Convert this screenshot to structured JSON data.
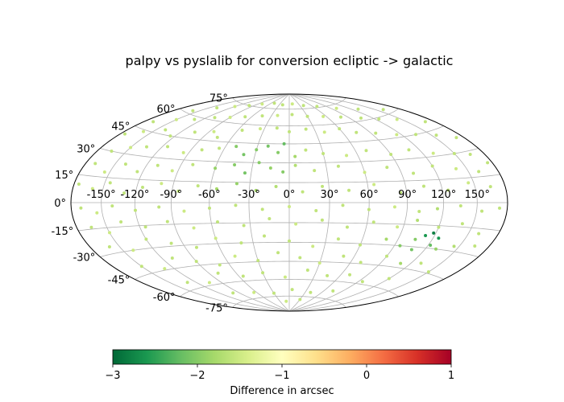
{
  "chart_data": {
    "type": "scatter",
    "projection": "hammer",
    "title": "palpy vs pyslalib for conversion ecliptic -> galactic",
    "grid": true,
    "x_tick_labels": [
      "-150°",
      "-120°",
      "-90°",
      "-60°",
      "-30°",
      "0°",
      "30°",
      "60°",
      "90°",
      "120°",
      "150°"
    ],
    "x_tick_values": [
      -150,
      -120,
      -90,
      -60,
      -30,
      0,
      30,
      60,
      90,
      120,
      150
    ],
    "y_tick_labels": [
      "-75°",
      "-60°",
      "-45°",
      "-30°",
      "-15°",
      "0°",
      "15°",
      "30°",
      "45°",
      "60°",
      "75°"
    ],
    "y_tick_values": [
      -75,
      -60,
      -45,
      -30,
      -15,
      0,
      15,
      30,
      45,
      60,
      75
    ],
    "colorbar": {
      "label": "Difference in arcsec",
      "colormap": "RdYlGn_r",
      "range": [
        -3,
        1
      ],
      "tick_labels": [
        "−3",
        "−2",
        "−1",
        "0",
        "1"
      ],
      "tick_values": [
        -3,
        -2,
        -1,
        0,
        1
      ],
      "colors": [
        "#006837",
        "#1a9850",
        "#66bd63",
        "#a6d96a",
        "#d9ef8b",
        "#ffffbf",
        "#fee08b",
        "#fdae61",
        "#f46d43",
        "#d73027",
        "#a50026"
      ]
    },
    "points": [
      [
        -158,
        62,
        -1.6
      ],
      [
        -140,
        68,
        -1.6
      ],
      [
        -120,
        72,
        -1.5
      ],
      [
        -100,
        75,
        -1.6
      ],
      [
        -80,
        78,
        -1.5
      ],
      [
        -50,
        80,
        -1.6
      ],
      [
        -20,
        79,
        -1.6
      ],
      [
        10,
        80,
        -1.5
      ],
      [
        40,
        78,
        -1.6
      ],
      [
        70,
        76,
        -1.6
      ],
      [
        100,
        72,
        -1.5
      ],
      [
        130,
        68,
        -1.6
      ],
      [
        160,
        63,
        -1.6
      ],
      [
        -170,
        50,
        -1.6
      ],
      [
        -150,
        55,
        -1.5
      ],
      [
        -130,
        58,
        -1.6
      ],
      [
        -110,
        62,
        -1.6
      ],
      [
        -90,
        64,
        -1.5
      ],
      [
        -70,
        66,
        -1.6
      ],
      [
        -45,
        68,
        -1.6
      ],
      [
        -20,
        69,
        -1.5
      ],
      [
        5,
        70,
        -1.6
      ],
      [
        30,
        68,
        -1.6
      ],
      [
        55,
        67,
        -1.5
      ],
      [
        80,
        65,
        -1.6
      ],
      [
        105,
        62,
        -1.6
      ],
      [
        125,
        59,
        -1.6
      ],
      [
        145,
        56,
        -1.5
      ],
      [
        170,
        50,
        -1.6
      ],
      [
        -175,
        40,
        -1.6
      ],
      [
        -160,
        44,
        -1.5
      ],
      [
        -140,
        48,
        -1.6
      ],
      [
        -125,
        45,
        -1.6
      ],
      [
        -105,
        50,
        -1.6
      ],
      [
        -85,
        52,
        -1.5
      ],
      [
        -75,
        48,
        -1.6
      ],
      [
        -55,
        55,
        -1.6
      ],
      [
        -35,
        57,
        -1.5
      ],
      [
        -15,
        58,
        -1.6
      ],
      [
        0,
        55,
        -1.6
      ],
      [
        20,
        57,
        -1.6
      ],
      [
        40,
        54,
        -1.5
      ],
      [
        60,
        56,
        -1.6
      ],
      [
        75,
        52,
        -1.6
      ],
      [
        95,
        50,
        -1.6
      ],
      [
        115,
        47,
        -1.5
      ],
      [
        135,
        45,
        -1.6
      ],
      [
        155,
        42,
        -1.6
      ],
      [
        172,
        38,
        -1.6
      ],
      [
        -165,
        30,
        -1.6
      ],
      [
        -150,
        34,
        -1.5
      ],
      [
        -135,
        36,
        -1.6
      ],
      [
        -115,
        38,
        -1.6
      ],
      [
        -95,
        35,
        -1.5
      ],
      [
        -80,
        38,
        -1.6
      ],
      [
        -65,
        40,
        -1.6
      ],
      [
        -50,
        42,
        -2.0
      ],
      [
        -40,
        36,
        -2.1
      ],
      [
        -30,
        40,
        -2.0
      ],
      [
        -20,
        43,
        -2.1
      ],
      [
        -10,
        38,
        -2.0
      ],
      [
        -5,
        45,
        -2.2
      ],
      [
        5,
        35,
        -1.8
      ],
      [
        15,
        40,
        -1.6
      ],
      [
        30,
        37,
        -1.6
      ],
      [
        50,
        35,
        -1.5
      ],
      [
        70,
        38,
        -1.6
      ],
      [
        90,
        34,
        -1.6
      ],
      [
        110,
        36,
        -1.6
      ],
      [
        130,
        32,
        -1.5
      ],
      [
        150,
        30,
        -1.6
      ],
      [
        165,
        28,
        -1.6
      ],
      [
        -170,
        22,
        -1.6
      ],
      [
        -155,
        18,
        -1.5
      ],
      [
        -140,
        24,
        -1.6
      ],
      [
        -125,
        20,
        -1.6
      ],
      [
        -110,
        25,
        -1.6
      ],
      [
        -95,
        22,
        -1.5
      ],
      [
        -80,
        27,
        -1.6
      ],
      [
        -60,
        25,
        -1.9
      ],
      [
        -45,
        28,
        -2.0
      ],
      [
        -35,
        22,
        -2.1
      ],
      [
        -25,
        30,
        -2.0
      ],
      [
        -15,
        26,
        -1.9
      ],
      [
        -5,
        23,
        -2.0
      ],
      [
        5,
        28,
        -1.7
      ],
      [
        20,
        24,
        -1.6
      ],
      [
        40,
        27,
        -1.6
      ],
      [
        60,
        22,
        -1.5
      ],
      [
        80,
        25,
        -1.6
      ],
      [
        100,
        20,
        -1.6
      ],
      [
        120,
        24,
        -1.6
      ],
      [
        140,
        21,
        -1.5
      ],
      [
        160,
        18,
        -1.6
      ],
      [
        175,
        22,
        -1.6
      ],
      [
        -175,
        10,
        -1.6
      ],
      [
        -160,
        8,
        -1.5
      ],
      [
        -145,
        12,
        -1.6
      ],
      [
        -130,
        6,
        -1.6
      ],
      [
        -115,
        10,
        -1.6
      ],
      [
        -100,
        13,
        -1.5
      ],
      [
        -85,
        8,
        -1.6
      ],
      [
        -70,
        12,
        -1.6
      ],
      [
        -55,
        10,
        -1.8
      ],
      [
        -40,
        14,
        -1.9
      ],
      [
        -25,
        9,
        -1.8
      ],
      [
        -10,
        12,
        -1.7
      ],
      [
        10,
        8,
        -1.6
      ],
      [
        25,
        12,
        -1.6
      ],
      [
        45,
        9,
        -1.6
      ],
      [
        65,
        13,
        -1.5
      ],
      [
        85,
        7,
        -1.6
      ],
      [
        105,
        11,
        -1.6
      ],
      [
        125,
        8,
        -1.6
      ],
      [
        145,
        12,
        -1.5
      ],
      [
        165,
        9,
        -1.6
      ],
      [
        -170,
        -3,
        -1.6
      ],
      [
        -155,
        -6,
        -1.5
      ],
      [
        -140,
        -2,
        -1.6
      ],
      [
        -120,
        -5,
        -1.6
      ],
      [
        -100,
        -3,
        -1.6
      ],
      [
        -80,
        -6,
        -1.5
      ],
      [
        -60,
        -4,
        -1.6
      ],
      [
        -40,
        -2,
        -1.6
      ],
      [
        -20,
        -5,
        -1.6
      ],
      [
        0,
        -3,
        -1.5
      ],
      [
        20,
        -6,
        -1.6
      ],
      [
        40,
        -2,
        -1.6
      ],
      [
        60,
        -5,
        -1.6
      ],
      [
        80,
        -3,
        -1.5
      ],
      [
        100,
        -6,
        -1.6
      ],
      [
        115,
        -4,
        -1.7
      ],
      [
        135,
        -2,
        -1.6
      ],
      [
        155,
        -5,
        -1.6
      ],
      [
        172,
        -3,
        -1.6
      ],
      [
        -165,
        -14,
        -1.6
      ],
      [
        -150,
        -18,
        -1.5
      ],
      [
        -135,
        -12,
        -1.6
      ],
      [
        -115,
        -16,
        -1.6
      ],
      [
        -95,
        -13,
        -1.6
      ],
      [
        -75,
        -18,
        -1.5
      ],
      [
        -55,
        -14,
        -1.6
      ],
      [
        -35,
        -17,
        -1.6
      ],
      [
        -15,
        -12,
        -1.6
      ],
      [
        5,
        -16,
        -1.5
      ],
      [
        25,
        -13,
        -1.6
      ],
      [
        45,
        -18,
        -1.6
      ],
      [
        65,
        -14,
        -1.6
      ],
      [
        85,
        -17,
        -1.5
      ],
      [
        100,
        -12,
        -1.7
      ],
      [
        120,
        -16,
        -1.6
      ],
      [
        140,
        -13,
        -1.6
      ],
      [
        160,
        -18,
        -1.6
      ],
      [
        -160,
        -26,
        -1.6
      ],
      [
        -140,
        -30,
        -1.5
      ],
      [
        -120,
        -24,
        -1.6
      ],
      [
        -100,
        -28,
        -1.6
      ],
      [
        -80,
        -32,
        -1.6
      ],
      [
        -60,
        -26,
        -1.5
      ],
      [
        -40,
        -30,
        -1.6
      ],
      [
        -20,
        -25,
        -1.6
      ],
      [
        0,
        -29,
        -1.6
      ],
      [
        20,
        -33,
        -1.5
      ],
      [
        40,
        -27,
        -1.6
      ],
      [
        60,
        -31,
        -1.6
      ],
      [
        80,
        -26,
        -1.8
      ],
      [
        95,
        -30,
        -2.0
      ],
      [
        105,
        -25,
        -2.0
      ],
      [
        112,
        -22,
        -2.6
      ],
      [
        118,
        -20,
        -2.8
      ],
      [
        125,
        -23,
        -2.6
      ],
      [
        122,
        -28,
        -2.2
      ],
      [
        108,
        -32,
        -2.1
      ],
      [
        130,
        -30,
        -1.9
      ],
      [
        145,
        -27,
        -1.7
      ],
      [
        165,
        -25,
        -1.6
      ],
      [
        -150,
        -40,
        -1.6
      ],
      [
        -130,
        -44,
        -1.5
      ],
      [
        -110,
        -38,
        -1.6
      ],
      [
        -90,
        -42,
        -1.6
      ],
      [
        -70,
        -46,
        -1.6
      ],
      [
        -50,
        -40,
        -1.5
      ],
      [
        -30,
        -44,
        -1.6
      ],
      [
        -10,
        -38,
        -1.6
      ],
      [
        10,
        -42,
        -1.6
      ],
      [
        30,
        -46,
        -1.5
      ],
      [
        50,
        -40,
        -1.6
      ],
      [
        70,
        -44,
        -1.6
      ],
      [
        90,
        -38,
        -1.6
      ],
      [
        110,
        -42,
        -1.8
      ],
      [
        130,
        -40,
        -1.6
      ],
      [
        150,
        -44,
        -1.6
      ],
      [
        -130,
        -55,
        -1.6
      ],
      [
        -105,
        -58,
        -1.5
      ],
      [
        -80,
        -52,
        -1.6
      ],
      [
        -55,
        -56,
        -1.6
      ],
      [
        -30,
        -54,
        -1.6
      ],
      [
        -5,
        -58,
        -1.5
      ],
      [
        20,
        -52,
        -1.6
      ],
      [
        45,
        -56,
        -1.6
      ],
      [
        70,
        -54,
        -1.6
      ],
      [
        95,
        -58,
        -1.6
      ],
      [
        120,
        -53,
        -1.6
      ],
      [
        -100,
        -68,
        -1.6
      ],
      [
        -65,
        -70,
        -1.5
      ],
      [
        -30,
        -72,
        -1.6
      ],
      [
        5,
        -69,
        -1.6
      ],
      [
        40,
        -71,
        -1.6
      ],
      [
        75,
        -68,
        -1.6
      ],
      [
        -10,
        -80,
        -1.5
      ],
      [
        30,
        -78,
        -1.6
      ]
    ]
  }
}
